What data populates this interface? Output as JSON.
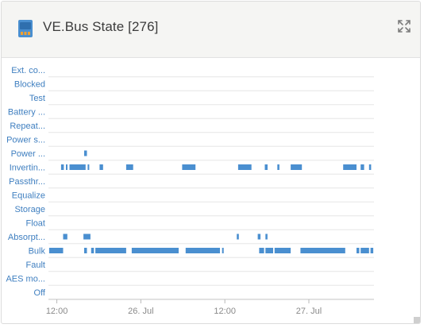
{
  "widget": {
    "title": "VE.Bus State [276]",
    "device_icon": "inverter-icon",
    "expand_icon": "expand-icon"
  },
  "chart_data": {
    "type": "timeline",
    "title": "VE.Bus State [276]",
    "categories": [
      "Ext. co...",
      "Blocked",
      "Test",
      "Battery ...",
      "Repeat...",
      "Power s...",
      "Power ...",
      "Invertin...",
      "Passthr...",
      "Equalize",
      "Storage",
      "Float",
      "Absorpt...",
      "Bulk",
      "Fault",
      "AES mo...",
      "Off"
    ],
    "x_unit": "hours",
    "x_ticks": [
      {
        "t": 12,
        "label": "12:00"
      },
      {
        "t": 24,
        "label": "26. Jul"
      },
      {
        "t": 36,
        "label": "12:00"
      },
      {
        "t": 48,
        "label": "27. Jul"
      }
    ],
    "xlim": [
      10.8,
      57.3
    ],
    "color": "#4a8fd0",
    "segments": [
      {
        "state": "Power ...",
        "spans": [
          [
            15.9,
            16.3
          ]
        ]
      },
      {
        "state": "Invertin...",
        "spans": [
          [
            12.6,
            13.0
          ],
          [
            13.3,
            13.5
          ],
          [
            13.8,
            16.1
          ],
          [
            16.4,
            16.5
          ],
          [
            18.1,
            18.6
          ],
          [
            21.9,
            22.9
          ],
          [
            29.9,
            31.8
          ],
          [
            37.9,
            39.8
          ],
          [
            41.7,
            42.1
          ],
          [
            43.5,
            43.8
          ],
          [
            45.4,
            47.0
          ],
          [
            52.9,
            54.8
          ],
          [
            55.4,
            55.9
          ],
          [
            56.6,
            56.9
          ]
        ]
      },
      {
        "state": "Absorpt...",
        "spans": [
          [
            12.9,
            13.5
          ],
          [
            15.8,
            16.8
          ],
          [
            37.7,
            38.0
          ],
          [
            40.7,
            41.1
          ],
          [
            41.8,
            42.1
          ]
        ]
      },
      {
        "state": "Bulk",
        "spans": [
          [
            10.9,
            12.9
          ],
          [
            15.9,
            16.3
          ],
          [
            16.9,
            17.3
          ],
          [
            17.5,
            21.9
          ],
          [
            22.7,
            29.4
          ],
          [
            30.4,
            35.3
          ],
          [
            35.6,
            35.8
          ],
          [
            40.9,
            41.6
          ],
          [
            41.8,
            42.9
          ],
          [
            43.1,
            45.4
          ],
          [
            46.8,
            53.2
          ],
          [
            54.8,
            55.2
          ],
          [
            55.4,
            56.6
          ],
          [
            56.8,
            57.2
          ]
        ]
      }
    ]
  }
}
